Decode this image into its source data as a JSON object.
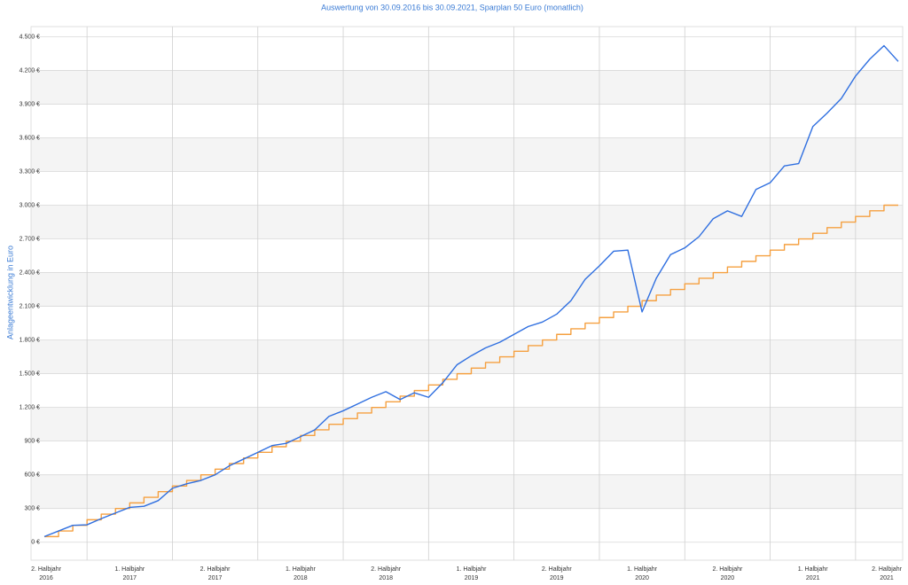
{
  "chart_data": {
    "type": "line",
    "title": "Auswertung von 30.09.2016 bis 30.09.2021, Sparplan 50 Euro (monatlich)",
    "y_label": "Anlageentwicklung  in Euro",
    "x_labels": [
      {
        "period": "2. Halbjahr",
        "year": "2016"
      },
      {
        "period": "1. Halbjahr",
        "year": "2017"
      },
      {
        "period": "2. Halbjahr",
        "year": "2017"
      },
      {
        "period": "1. Halbjahr",
        "year": "2018"
      },
      {
        "period": "2. Halbjahr",
        "year": "2018"
      },
      {
        "period": "1. Halbjahr",
        "year": "2019"
      },
      {
        "period": "2. Halbjahr",
        "year": "2019"
      },
      {
        "period": "1. Halbjahr",
        "year": "2020"
      },
      {
        "period": "2. Halbjahr",
        "year": "2020"
      },
      {
        "period": "1. Halbjahr",
        "year": "2021"
      },
      {
        "period": "2. Halbjahr",
        "year": "2021"
      }
    ],
    "ylim": [
      -160,
      4590
    ],
    "yticks": [
      {
        "value": 0,
        "label": "0 €"
      },
      {
        "value": 300,
        "label": "300 €"
      },
      {
        "value": 600,
        "label": "600 €"
      },
      {
        "value": 900,
        "label": "900 €"
      },
      {
        "value": 1200,
        "label": "1.200 €"
      },
      {
        "value": 1500,
        "label": "1.500 €"
      },
      {
        "value": 1800,
        "label": "1.800 €"
      },
      {
        "value": 2100,
        "label": "2.100 €"
      },
      {
        "value": 2400,
        "label": "2.400 €"
      },
      {
        "value": 2700,
        "label": "2.700 €"
      },
      {
        "value": 3000,
        "label": "3.000 €"
      },
      {
        "value": 3300,
        "label": "3.300 €"
      },
      {
        "value": 3600,
        "label": "3.600 €"
      },
      {
        "value": 3900,
        "label": "3.900 €"
      },
      {
        "value": 4200,
        "label": "4.200 €"
      },
      {
        "value": 4500,
        "label": "4.500 €"
      }
    ],
    "grid": true,
    "series": [
      {
        "color": "#2f6fe0",
        "step": false,
        "values": [
          50,
          100,
          150,
          155,
          210,
          260,
          310,
          320,
          370,
          480,
          520,
          550,
          600,
          680,
          740,
          800,
          860,
          880,
          940,
          1000,
          1120,
          1170,
          1230,
          1290,
          1340,
          1270,
          1330,
          1290,
          1420,
          1580,
          1660,
          1730,
          1780,
          1850,
          1920,
          1960,
          2030,
          2150,
          2340,
          2460,
          2590,
          2600,
          2050,
          2350,
          2560,
          2620,
          2720,
          2880,
          2950,
          2900,
          3140,
          3200,
          3350,
          3370,
          3700,
          3820,
          3950,
          4150,
          4300,
          4420,
          4280
        ]
      },
      {
        "color": "#f5a040",
        "step": true,
        "values": [
          50,
          100,
          150,
          200,
          250,
          300,
          350,
          400,
          450,
          500,
          550,
          600,
          650,
          700,
          750,
          800,
          850,
          900,
          950,
          1000,
          1050,
          1100,
          1150,
          1200,
          1250,
          1300,
          1350,
          1400,
          1450,
          1500,
          1550,
          1600,
          1650,
          1700,
          1750,
          1800,
          1850,
          1900,
          1950,
          2000,
          2050,
          2100,
          2150,
          2200,
          2250,
          2300,
          2350,
          2400,
          2450,
          2500,
          2550,
          2600,
          2650,
          2700,
          2750,
          2800,
          2850,
          2900,
          2950,
          3000,
          3000
        ]
      }
    ]
  }
}
